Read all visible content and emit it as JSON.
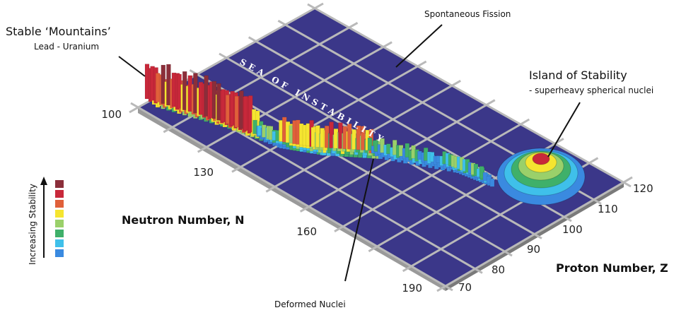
{
  "annotations": {
    "stable_title": "Stable ‘Mountains’",
    "stable_sub": "Lead - Uranium",
    "fission": "Spontaneous Fission",
    "sea": "SEA OF INSTABILITY",
    "island_title": "Island of Stability",
    "island_sub": "- superheavy spherical nuclei",
    "deformed": "Deformed Nuclei"
  },
  "axes": {
    "n_label": "Neutron Number, N",
    "z_label": "Proton Number, Z",
    "n_ticks": [
      "100",
      "130",
      "160",
      "190"
    ],
    "z_ticks": [
      "70",
      "80",
      "90",
      "100",
      "110",
      "120"
    ]
  },
  "legend": {
    "label": "Increasing Stability"
  }
}
